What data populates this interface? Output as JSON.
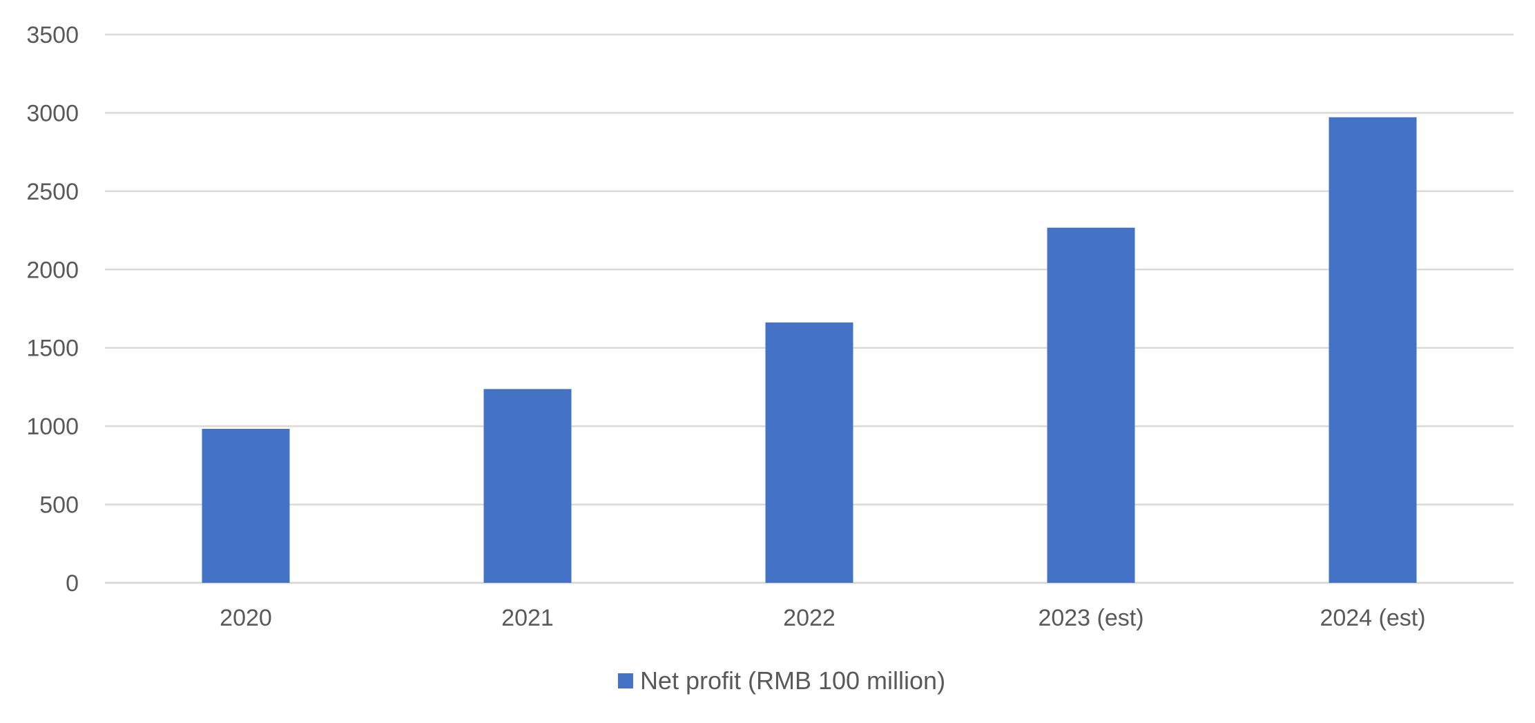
{
  "chart_data": {
    "type": "bar",
    "categories": [
      "2020",
      "2021",
      "2022",
      "2023 (est)",
      "2024 (est)"
    ],
    "series": [
      {
        "name": "Net profit (RMB 100 million)",
        "values": [
          983,
          1237,
          1662,
          2267,
          2972
        ],
        "color": "#4472c4"
      }
    ],
    "title": "",
    "xlabel": "",
    "ylabel": "",
    "ylim": [
      0,
      3500
    ],
    "yticks": [
      0,
      500,
      1000,
      1500,
      2000,
      2500,
      3000,
      3500
    ],
    "grid": true,
    "legend_position": "bottom"
  }
}
